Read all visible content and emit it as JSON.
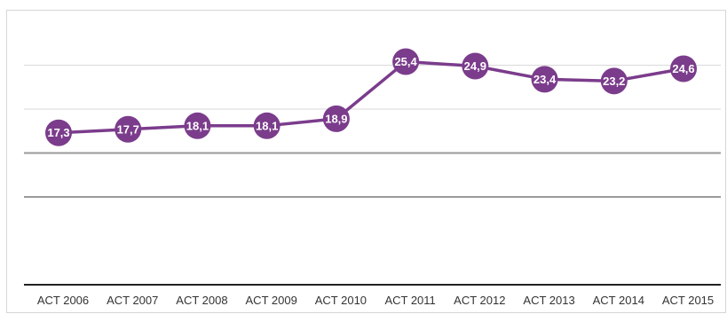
{
  "chart_data": {
    "type": "line",
    "title": "",
    "xlabel": "",
    "ylabel": "",
    "categories": [
      "ACT 2006",
      "ACT 2007",
      "ACT 2008",
      "ACT 2009",
      "ACT 2010",
      "ACT 2011",
      "ACT 2012",
      "ACT 2013",
      "ACT 2014",
      "ACT 2015"
    ],
    "series": [
      {
        "values": [
          17.3,
          17.7,
          18.1,
          18.1,
          18.9,
          25.4,
          24.9,
          23.4,
          23.2,
          24.6
        ],
        "labels": [
          "17,3",
          "17,7",
          "18,1",
          "18,1",
          "18,9",
          "25,4",
          "24,9",
          "23,4",
          "23,2",
          "24,6"
        ],
        "color": "#7b3c8c"
      }
    ],
    "ylim": [
      0,
      30
    ],
    "grid": true,
    "legend": "none",
    "data_labels": "inside-markers"
  }
}
